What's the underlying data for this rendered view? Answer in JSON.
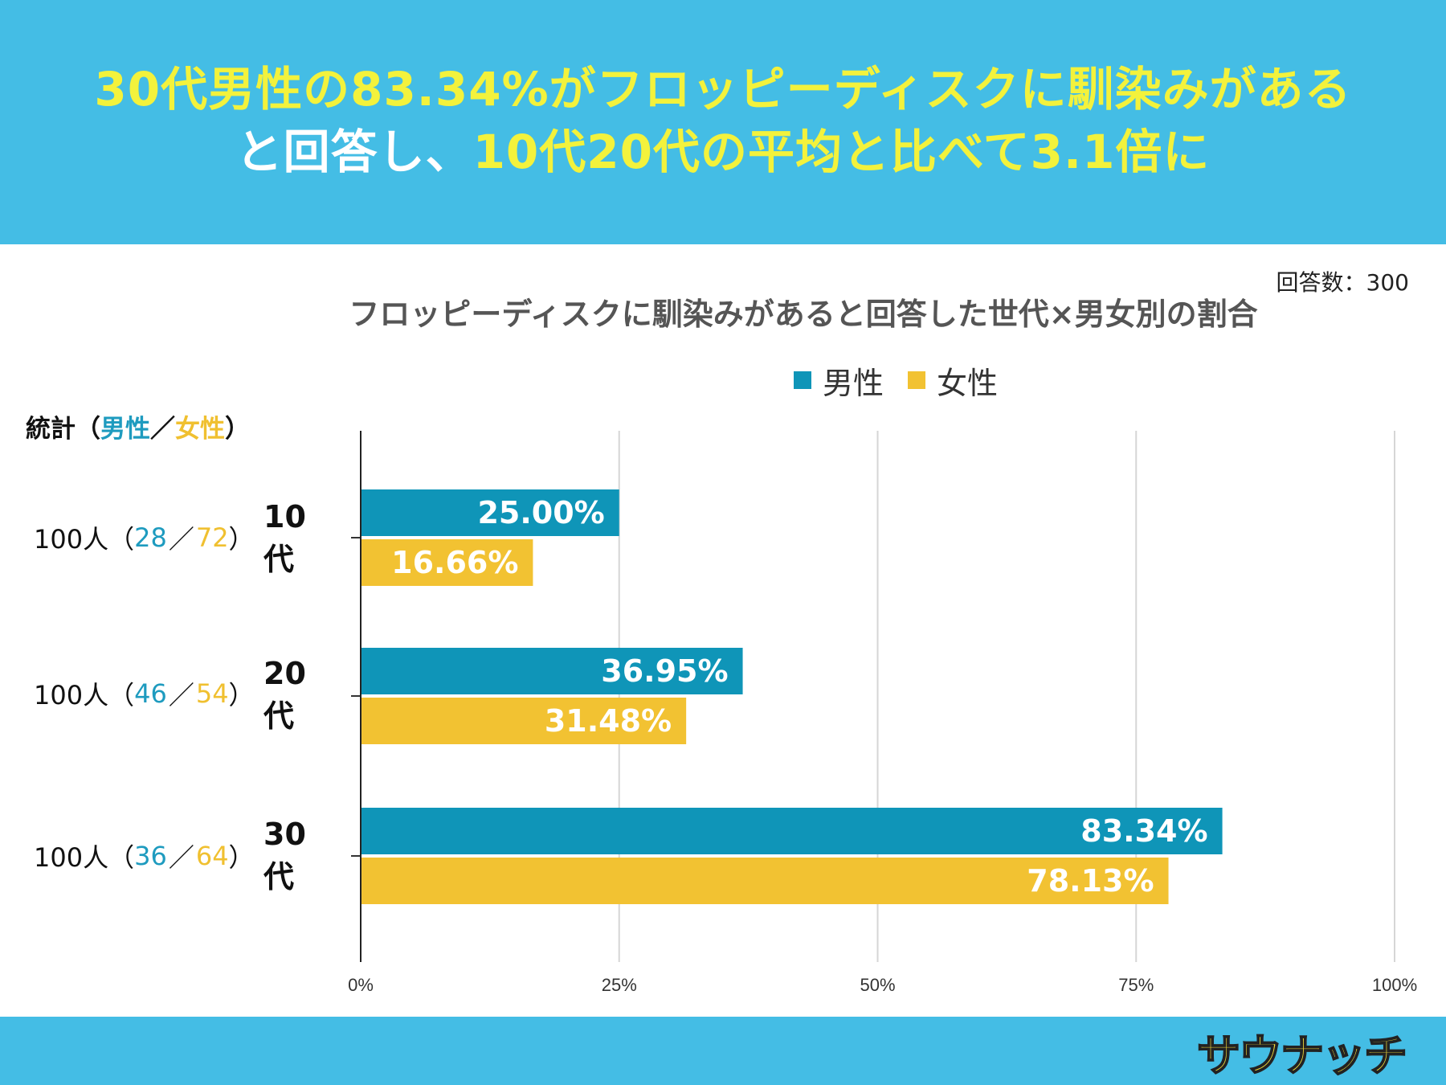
{
  "header": {
    "headline_line1": "30代男性の83.34%がフロッピーディスクに馴染みがある",
    "headline_line2_white": "と回答し、",
    "headline_line2_yellow": "10代20代の平均と比べて3.1倍に"
  },
  "respondents": "回答数：300",
  "stats_header": {
    "prefix": "統計（",
    "male": "男性",
    "slash": "／",
    "female": "女性",
    "suffix": "）"
  },
  "rows": [
    {
      "total": "100人（",
      "male": "28",
      "slash": "／",
      "female": "72",
      "close": "）",
      "category": "10代"
    },
    {
      "total": "100人（",
      "male": "46",
      "slash": "／",
      "female": "54",
      "close": "）",
      "category": "20代"
    },
    {
      "total": "100人（",
      "male": "36",
      "slash": "／",
      "female": "64",
      "close": "）",
      "category": "30代"
    }
  ],
  "logo_text": "サウナッチ",
  "chart_data": {
    "type": "bar",
    "orientation": "horizontal",
    "title": "フロッピーディスクに馴染みがあると回答した世代×男女別の割合",
    "categories": [
      "10代",
      "20代",
      "30代"
    ],
    "series": [
      {
        "name": "男性",
        "color": "#0f95b8",
        "values": [
          25.0,
          36.95,
          83.34
        ],
        "labels": [
          "25.00%",
          "36.95%",
          "83.34%"
        ]
      },
      {
        "name": "女性",
        "color": "#f2c232",
        "values": [
          16.66,
          31.48,
          78.13
        ],
        "labels": [
          "16.66%",
          "31.48%",
          "78.13%"
        ]
      }
    ],
    "highlight": {
      "series": 0,
      "index": 2,
      "color": "#f3f23c"
    },
    "xlim": [
      0,
      100
    ],
    "xticks": [
      0,
      25,
      50,
      75,
      100
    ],
    "xtick_labels": [
      "0%",
      "25%",
      "50%",
      "75%",
      "100%"
    ],
    "grid": true,
    "legend": "top-center"
  }
}
